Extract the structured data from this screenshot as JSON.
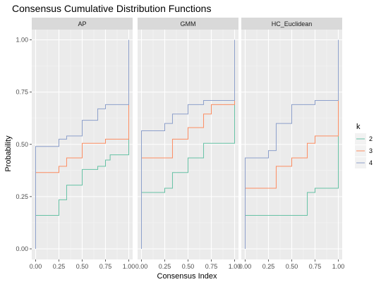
{
  "chart_data": {
    "type": "line",
    "subtype": "step",
    "title": "Consensus Cumulative Distribution Functions",
    "xlabel": "Consensus Index",
    "ylabel": "Probability",
    "xlim": [
      0,
      1
    ],
    "ylim": [
      0,
      1
    ],
    "x_ticks": [
      "0.00",
      "0.25",
      "0.50",
      "0.75",
      "1.00"
    ],
    "y_ticks": [
      "0.00",
      "0.25",
      "0.50",
      "0.75",
      "1.00"
    ],
    "grid": true,
    "legend": {
      "title": "k",
      "position": "right",
      "entries": [
        {
          "label": "2",
          "color": "#66c2a5"
        },
        {
          "label": "3",
          "color": "#fc8d62"
        },
        {
          "label": "4",
          "color": "#8da0cb"
        }
      ]
    },
    "facets": [
      {
        "label": "AP",
        "series": [
          {
            "k": "2",
            "points": [
              [
                0,
                0
              ],
              [
                0,
                0.16
              ],
              [
                0.25,
                0.16
              ],
              [
                0.25,
                0.235
              ],
              [
                0.333,
                0.235
              ],
              [
                0.333,
                0.305
              ],
              [
                0.5,
                0.305
              ],
              [
                0.5,
                0.38
              ],
              [
                0.667,
                0.38
              ],
              [
                0.667,
                0.395
              ],
              [
                0.75,
                0.395
              ],
              [
                0.75,
                0.425
              ],
              [
                0.8,
                0.425
              ],
              [
                0.8,
                0.45
              ],
              [
                1,
                0.45
              ],
              [
                1,
                1
              ]
            ]
          },
          {
            "k": "3",
            "points": [
              [
                0,
                0
              ],
              [
                0,
                0.365
              ],
              [
                0.25,
                0.365
              ],
              [
                0.25,
                0.395
              ],
              [
                0.333,
                0.395
              ],
              [
                0.333,
                0.435
              ],
              [
                0.5,
                0.435
              ],
              [
                0.5,
                0.505
              ],
              [
                0.75,
                0.505
              ],
              [
                0.75,
                0.525
              ],
              [
                1,
                0.525
              ],
              [
                1,
                1
              ]
            ]
          },
          {
            "k": "4",
            "points": [
              [
                0,
                0
              ],
              [
                0,
                0.49
              ],
              [
                0.25,
                0.49
              ],
              [
                0.25,
                0.525
              ],
              [
                0.333,
                0.525
              ],
              [
                0.333,
                0.54
              ],
              [
                0.5,
                0.54
              ],
              [
                0.5,
                0.615
              ],
              [
                0.667,
                0.615
              ],
              [
                0.667,
                0.67
              ],
              [
                0.75,
                0.67
              ],
              [
                0.75,
                0.69
              ],
              [
                1,
                0.69
              ],
              [
                1,
                1
              ]
            ]
          }
        ]
      },
      {
        "label": "GMM",
        "series": [
          {
            "k": "2",
            "points": [
              [
                0,
                0
              ],
              [
                0,
                0.27
              ],
              [
                0.25,
                0.27
              ],
              [
                0.25,
                0.29
              ],
              [
                0.333,
                0.29
              ],
              [
                0.333,
                0.365
              ],
              [
                0.5,
                0.365
              ],
              [
                0.5,
                0.435
              ],
              [
                0.667,
                0.435
              ],
              [
                0.667,
                0.505
              ],
              [
                1,
                0.505
              ],
              [
                1,
                1
              ]
            ]
          },
          {
            "k": "3",
            "points": [
              [
                0,
                0
              ],
              [
                0,
                0.435
              ],
              [
                0.333,
                0.435
              ],
              [
                0.333,
                0.525
              ],
              [
                0.5,
                0.525
              ],
              [
                0.5,
                0.58
              ],
              [
                0.667,
                0.58
              ],
              [
                0.667,
                0.645
              ],
              [
                0.75,
                0.645
              ],
              [
                0.75,
                0.69
              ],
              [
                1,
                0.69
              ],
              [
                1,
                1
              ]
            ]
          },
          {
            "k": "4",
            "points": [
              [
                0,
                0
              ],
              [
                0,
                0.565
              ],
              [
                0.25,
                0.565
              ],
              [
                0.25,
                0.6
              ],
              [
                0.333,
                0.6
              ],
              [
                0.333,
                0.645
              ],
              [
                0.5,
                0.645
              ],
              [
                0.5,
                0.69
              ],
              [
                0.667,
                0.69
              ],
              [
                0.667,
                0.71
              ],
              [
                1,
                0.71
              ],
              [
                1,
                1
              ]
            ]
          }
        ]
      },
      {
        "label": "HC_Euclidean",
        "series": [
          {
            "k": "2",
            "points": [
              [
                0,
                0
              ],
              [
                0,
                0.16
              ],
              [
                0.667,
                0.16
              ],
              [
                0.667,
                0.27
              ],
              [
                0.75,
                0.27
              ],
              [
                0.75,
                0.29
              ],
              [
                1,
                0.29
              ],
              [
                1,
                1
              ]
            ]
          },
          {
            "k": "3",
            "points": [
              [
                0,
                0
              ],
              [
                0,
                0.29
              ],
              [
                0.333,
                0.29
              ],
              [
                0.333,
                0.395
              ],
              [
                0.5,
                0.395
              ],
              [
                0.5,
                0.435
              ],
              [
                0.667,
                0.435
              ],
              [
                0.667,
                0.505
              ],
              [
                0.75,
                0.505
              ],
              [
                0.75,
                0.54
              ],
              [
                1,
                0.54
              ],
              [
                1,
                1
              ]
            ]
          },
          {
            "k": "4",
            "points": [
              [
                0,
                0
              ],
              [
                0,
                0.435
              ],
              [
                0.25,
                0.435
              ],
              [
                0.25,
                0.47
              ],
              [
                0.333,
                0.47
              ],
              [
                0.333,
                0.6
              ],
              [
                0.5,
                0.6
              ],
              [
                0.5,
                0.69
              ],
              [
                0.75,
                0.69
              ],
              [
                0.75,
                0.71
              ],
              [
                1,
                0.71
              ],
              [
                1,
                1
              ]
            ]
          }
        ]
      }
    ]
  }
}
